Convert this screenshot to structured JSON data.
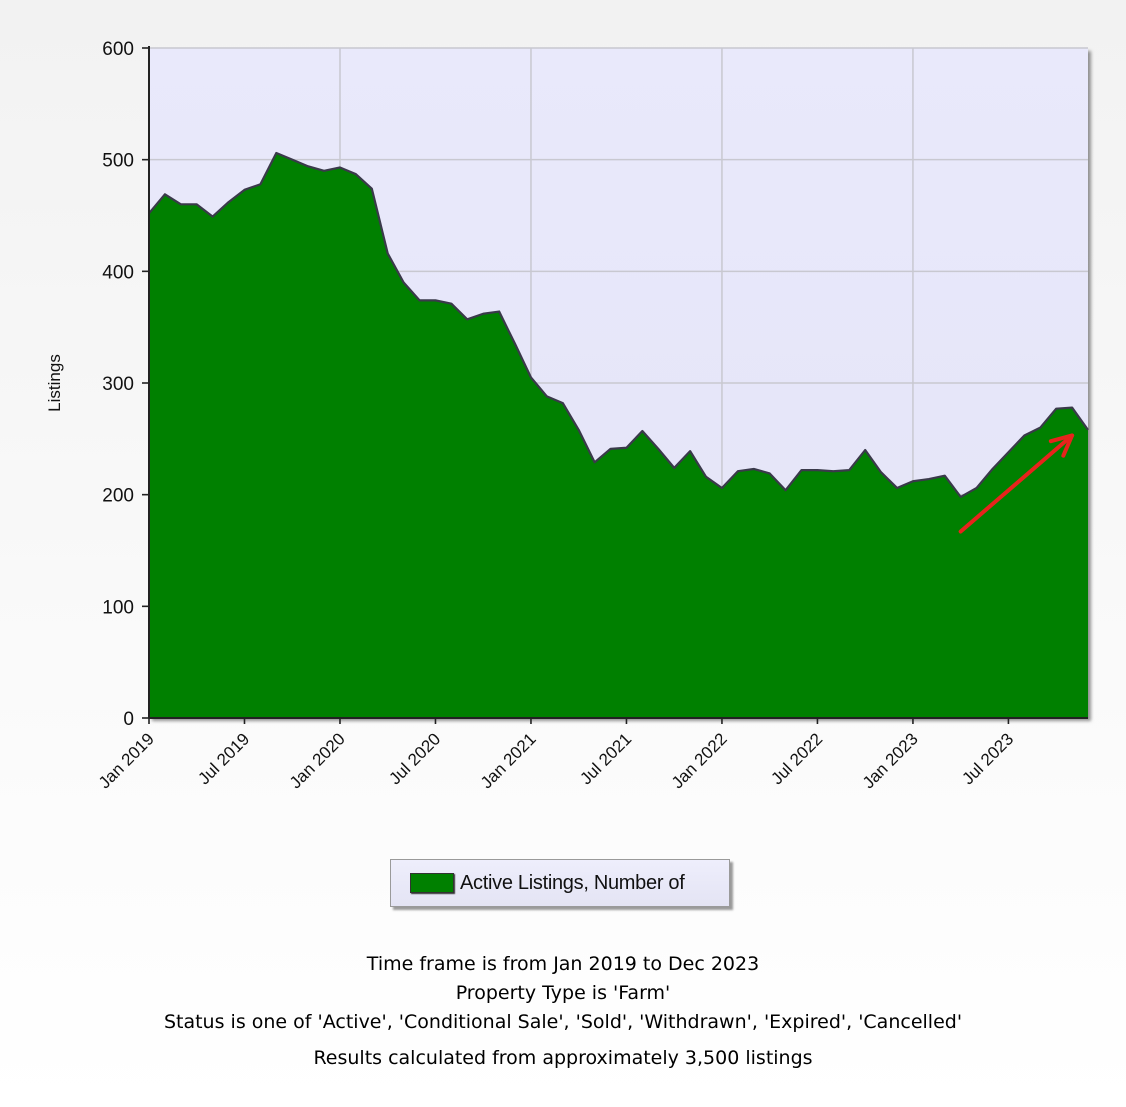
{
  "chart_data": {
    "type": "area",
    "title": "",
    "xlabel": "",
    "ylabel": "Listings",
    "ylim": [
      0,
      600
    ],
    "yticks": [
      0,
      100,
      200,
      300,
      400,
      500,
      600
    ],
    "grid": true,
    "x_tick_labels": [
      "Jan 2019",
      "Jul 2019",
      "Jan 2020",
      "Jul 2020",
      "Jan 2021",
      "Jul 2021",
      "Jan 2022",
      "Jul 2022",
      "Jan 2023",
      "Jul 2023"
    ],
    "series": [
      {
        "name": "Active Listings, Number of",
        "color": "#008000",
        "months": [
          "Jan 2019",
          "Feb 2019",
          "Mar 2019",
          "Apr 2019",
          "May 2019",
          "Jun 2019",
          "Jul 2019",
          "Aug 2019",
          "Sep 2019",
          "Oct 2019",
          "Nov 2019",
          "Dec 2019",
          "Jan 2020",
          "Feb 2020",
          "Mar 2020",
          "Apr 2020",
          "May 2020",
          "Jun 2020",
          "Jul 2020",
          "Aug 2020",
          "Sep 2020",
          "Oct 2020",
          "Nov 2020",
          "Dec 2020",
          "Jan 2021",
          "Feb 2021",
          "Mar 2021",
          "Apr 2021",
          "May 2021",
          "Jun 2021",
          "Jul 2021",
          "Aug 2021",
          "Sep 2021",
          "Oct 2021",
          "Nov 2021",
          "Dec 2021",
          "Jan 2022",
          "Feb 2022",
          "Mar 2022",
          "Apr 2022",
          "May 2022",
          "Jun 2022",
          "Jul 2022",
          "Aug 2022",
          "Sep 2022",
          "Oct 2022",
          "Nov 2022",
          "Dec 2022",
          "Jan 2023",
          "Feb 2023",
          "Mar 2023",
          "Apr 2023",
          "May 2023",
          "Jun 2023",
          "Jul 2023",
          "Aug 2023",
          "Sep 2023",
          "Oct 2023",
          "Nov 2023",
          "Dec 2023"
        ],
        "values": [
          452,
          469,
          460,
          460,
          449,
          462,
          473,
          478,
          506,
          500,
          494,
          490,
          493,
          487,
          474,
          416,
          390,
          374,
          374,
          371,
          357,
          362,
          364,
          335,
          305,
          288,
          282,
          258,
          229,
          241,
          242,
          257,
          241,
          224,
          239,
          216,
          206,
          221,
          223,
          219,
          204,
          222,
          222,
          221,
          222,
          240,
          220,
          206,
          212,
          214,
          217,
          198,
          206,
          223,
          238,
          253,
          260,
          277,
          278,
          258
        ]
      }
    ],
    "annotations": [
      {
        "type": "arrow",
        "color": "#e8231c",
        "from_month": "Apr 2023",
        "from_value": 167,
        "to_month": "Nov 2023",
        "to_value": 253
      }
    ]
  },
  "legend": {
    "label": "Active Listings, Number of",
    "swatch_color": "#008000"
  },
  "footer": {
    "line1": "Time frame is from Jan 2019 to Dec 2023",
    "line2": "Property Type is 'Farm'",
    "line3": "Status is one of 'Active', 'Conditional Sale', 'Sold', 'Withdrawn', 'Expired', 'Cancelled'",
    "line4": "Results calculated from approximately 3,500 listings"
  }
}
